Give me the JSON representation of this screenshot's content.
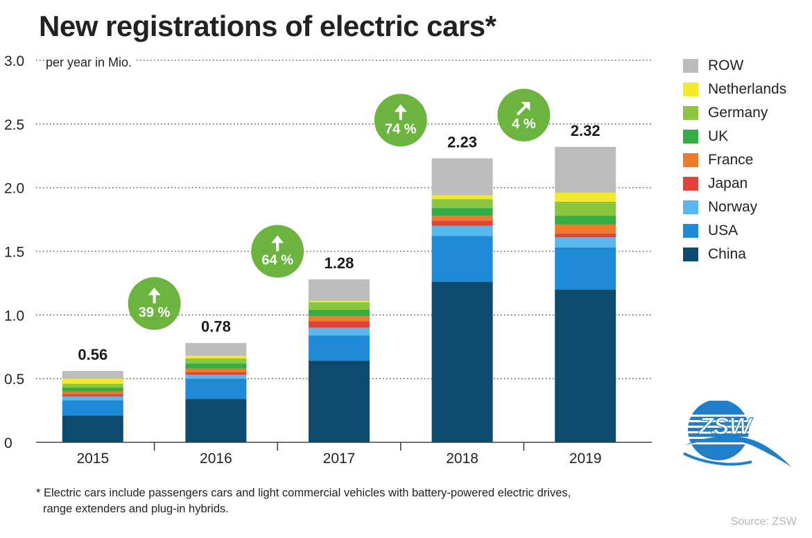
{
  "title": "New registrations of electric cars*",
  "unit_label": "per year in Mio.",
  "footnote": {
    "line1": "* Electric cars include passengers cars and light commercial vehicles with battery-powered electric drives,",
    "line2": "range extenders and plug-in hybrids."
  },
  "source": "Source: ZSW",
  "logo": {
    "text": "ZSW",
    "icon": "zsw-logo-icon"
  },
  "colors": {
    "China": "#0c4a6e",
    "USA": "#1f8ad6",
    "Norway": "#5ab8ec",
    "Japan": "#e2423e",
    "France": "#f07a2c",
    "UK": "#34ad45",
    "Germany": "#8cc540",
    "Netherlands": "#f2e92a",
    "ROW": "#bcbcbd"
  },
  "chart_data": {
    "type": "bar",
    "stacked": true,
    "categories": [
      "2015",
      "2016",
      "2017",
      "2018",
      "2019"
    ],
    "yticks": [
      "0",
      "0.5",
      "1.0",
      "1.5",
      "2.0",
      "2.5",
      "3.0"
    ],
    "ylim": [
      0,
      3.0
    ],
    "grid": true,
    "legend_position": "right",
    "series": [
      {
        "name": "China",
        "values": [
          0.21,
          0.34,
          0.64,
          1.26,
          1.2
        ]
      },
      {
        "name": "USA",
        "values": [
          0.12,
          0.16,
          0.2,
          0.36,
          0.33
        ]
      },
      {
        "name": "Norway",
        "values": [
          0.03,
          0.03,
          0.06,
          0.08,
          0.08
        ]
      },
      {
        "name": "Japan",
        "values": [
          0.02,
          0.02,
          0.05,
          0.04,
          0.03
        ]
      },
      {
        "name": "France",
        "values": [
          0.02,
          0.03,
          0.04,
          0.04,
          0.07
        ]
      },
      {
        "name": "UK",
        "values": [
          0.03,
          0.04,
          0.05,
          0.06,
          0.07
        ]
      },
      {
        "name": "Germany",
        "values": [
          0.03,
          0.04,
          0.06,
          0.07,
          0.11
        ]
      },
      {
        "name": "Netherlands",
        "values": [
          0.04,
          0.02,
          0.01,
          0.03,
          0.07
        ]
      },
      {
        "name": "ROW",
        "values": [
          0.06,
          0.1,
          0.17,
          0.29,
          0.36
        ]
      }
    ],
    "totals": [
      "0.56",
      "0.78",
      "1.28",
      "2.23",
      "2.32"
    ],
    "growth_labels": [
      {
        "between": [
          "2015",
          "2016"
        ],
        "label": "39 %",
        "icon": "arrow-up-icon"
      },
      {
        "between": [
          "2016",
          "2017"
        ],
        "label": "64 %",
        "icon": "arrow-up-icon"
      },
      {
        "between": [
          "2017",
          "2018"
        ],
        "label": "74 %",
        "icon": "arrow-up-icon"
      },
      {
        "between": [
          "2018",
          "2019"
        ],
        "label": "4 %",
        "icon": "arrow-up-right-icon"
      }
    ]
  }
}
